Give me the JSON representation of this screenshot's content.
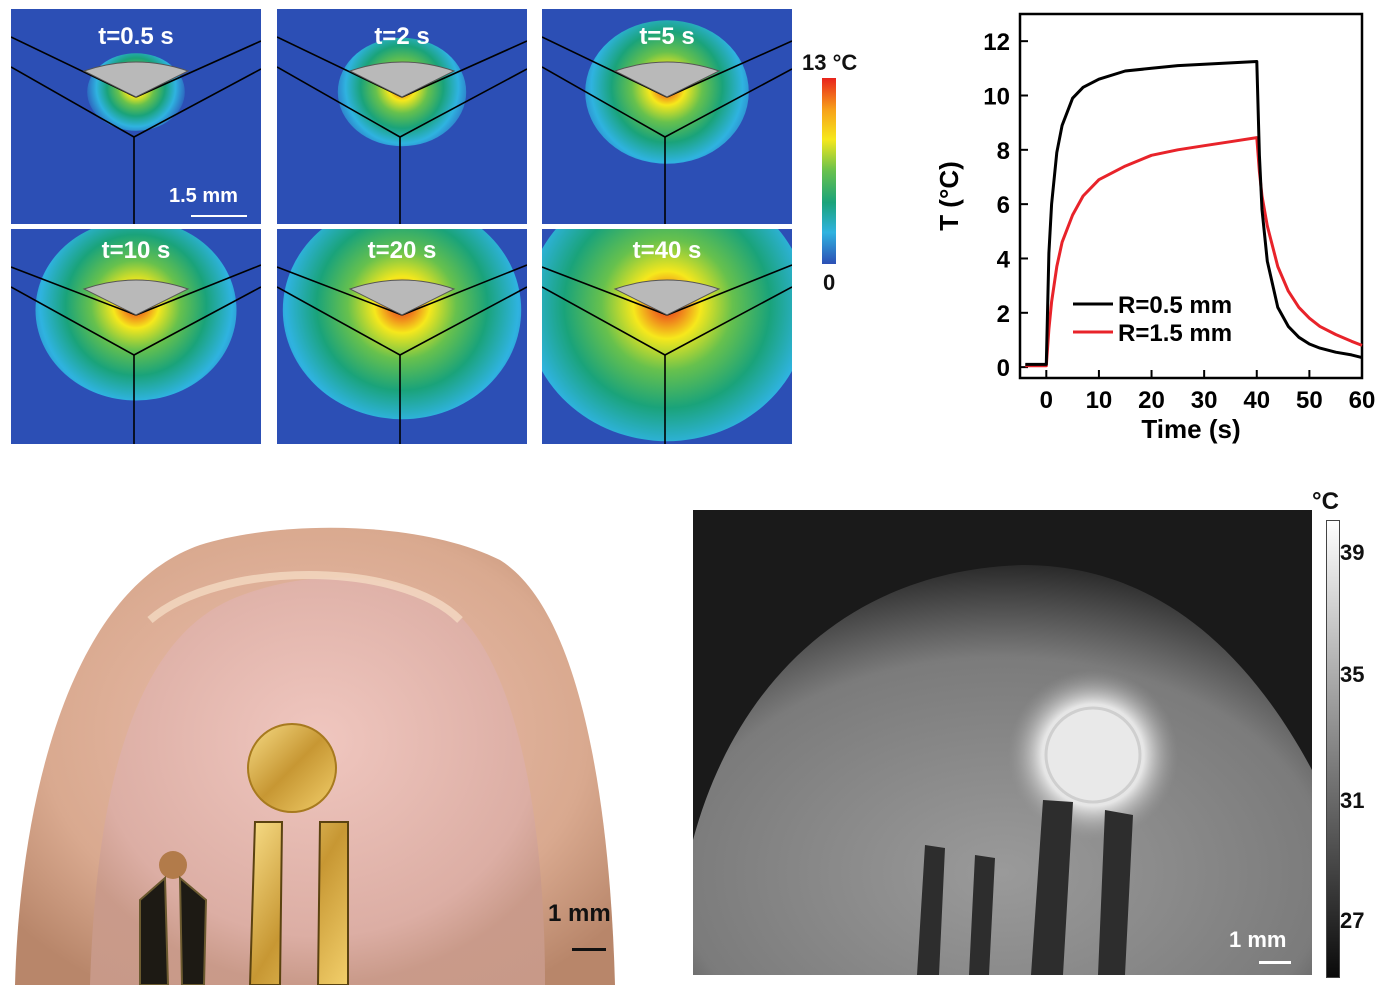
{
  "simulation": {
    "panels": [
      {
        "time_label": "t=0.5 s",
        "spread": 0.08
      },
      {
        "time_label": "t=2 s",
        "spread": 0.22
      },
      {
        "time_label": "t=5 s",
        "spread": 0.38
      },
      {
        "time_label": "t=10 s",
        "spread": 0.55
      },
      {
        "time_label": "t=20 s",
        "spread": 0.72
      },
      {
        "time_label": "t=40 s",
        "spread": 0.92
      }
    ],
    "scale_bar_label": "1.5 mm",
    "colorbar": {
      "max_label": "13 °C",
      "min_label": "0",
      "colors": [
        "#e8231c",
        "#f7a11a",
        "#f6e81c",
        "#67c14d",
        "#1aa37a",
        "#2fb3e0",
        "#2c4fb5"
      ]
    }
  },
  "chart_data": {
    "type": "line",
    "xlabel": "Time (s)",
    "ylabel": "T (°C)",
    "xlim": [
      -5,
      60
    ],
    "ylim": [
      -0.4,
      13
    ],
    "x_ticks": [
      "0",
      "10",
      "20",
      "30",
      "40",
      "50",
      "60"
    ],
    "y_ticks": [
      "0",
      "2",
      "4",
      "6",
      "8",
      "10",
      "12"
    ],
    "legend_position": "bottom-center",
    "series": [
      {
        "name": "R=0.5 mm",
        "color": "#000000",
        "x": [
          -4,
          0,
          0.5,
          1,
          2,
          3,
          5,
          7,
          10,
          15,
          20,
          25,
          30,
          35,
          40,
          40.5,
          41,
          42,
          44,
          46,
          48,
          50,
          52,
          55,
          58,
          60
        ],
        "y": [
          0.1,
          0.1,
          4.2,
          6.0,
          7.9,
          8.9,
          9.9,
          10.3,
          10.6,
          10.9,
          11.0,
          11.1,
          11.15,
          11.2,
          11.25,
          7.8,
          5.8,
          3.9,
          2.2,
          1.5,
          1.1,
          0.85,
          0.7,
          0.55,
          0.45,
          0.35
        ]
      },
      {
        "name": "R=1.5 mm",
        "color": "#e8232a",
        "x": [
          -4,
          0,
          0.5,
          1,
          2,
          3,
          5,
          7,
          10,
          15,
          20,
          25,
          30,
          35,
          40,
          40.5,
          41,
          42,
          44,
          46,
          48,
          50,
          52,
          55,
          58,
          60
        ],
        "y": [
          0.05,
          0.05,
          1.4,
          2.4,
          3.7,
          4.6,
          5.6,
          6.3,
          6.9,
          7.4,
          7.8,
          8.0,
          8.15,
          8.3,
          8.45,
          7.2,
          6.3,
          5.2,
          3.7,
          2.8,
          2.2,
          1.8,
          1.5,
          1.2,
          0.95,
          0.8
        ]
      }
    ]
  },
  "photo": {
    "scale_bar_label": "1 mm"
  },
  "thermal": {
    "scale_bar_label": "1 mm",
    "colorbar": {
      "unit": "°C",
      "ticks": [
        "39",
        "35",
        "31",
        "27"
      ]
    }
  }
}
